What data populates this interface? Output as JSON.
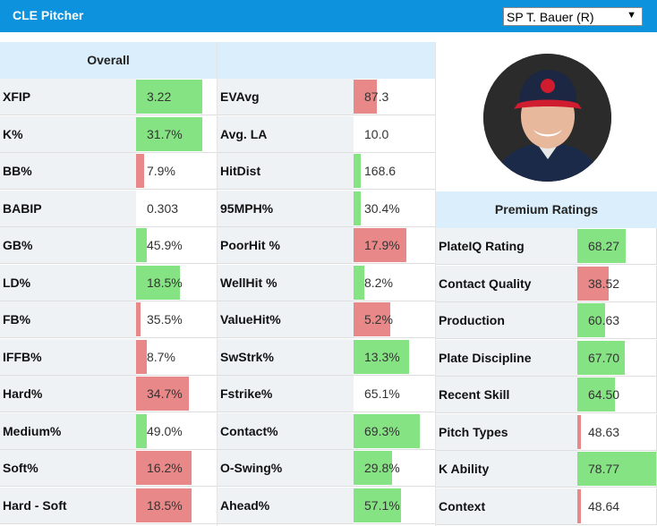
{
  "header": {
    "title": "CLE Pitcher",
    "pitcher_select": {
      "value": "SP T. Bauer (R)"
    }
  },
  "colors": {
    "header_bg": "#0d92dd",
    "good": "#86e384",
    "bad": "#e98888",
    "section_bg": "#daeefb",
    "label_bg": "#eef2f5"
  },
  "columns": [
    {
      "header": "Overall",
      "rows": [
        {
          "label": "XFIP",
          "value": "3.22",
          "fill": 0.98,
          "color": "good"
        },
        {
          "label": "K%",
          "value": "31.7%",
          "fill": 0.98,
          "color": "good"
        },
        {
          "label": "BB%",
          "value": "7.9%",
          "fill": 0.12,
          "color": "bad"
        },
        {
          "label": "BABIP",
          "value": "0.303",
          "fill": 0,
          "color": "good"
        },
        {
          "label": "GB%",
          "value": "45.9%",
          "fill": 0.16,
          "color": "good"
        },
        {
          "label": "LD%",
          "value": "18.5%",
          "fill": 0.64,
          "color": "good"
        },
        {
          "label": "FB%",
          "value": "35.5%",
          "fill": 0.06,
          "color": "bad"
        },
        {
          "label": "IFFB%",
          "value": "8.7%",
          "fill": 0.16,
          "color": "bad"
        },
        {
          "label": "Hard%",
          "value": "34.7%",
          "fill": 0.77,
          "color": "bad"
        },
        {
          "label": "Medium%",
          "value": "49.0%",
          "fill": 0.16,
          "color": "good"
        },
        {
          "label": "Soft%",
          "value": "16.2%",
          "fill": 0.82,
          "color": "bad"
        },
        {
          "label": "Hard - Soft",
          "value": "18.5%",
          "fill": 0.82,
          "color": "bad"
        }
      ]
    },
    {
      "header": "",
      "rows": [
        {
          "label": "EVAvg",
          "value": "87.3",
          "fill": 0.34,
          "color": "bad"
        },
        {
          "label": "Avg. LA",
          "value": "10.0",
          "fill": 0,
          "color": "good"
        },
        {
          "label": "HitDist",
          "value": "168.6",
          "fill": 0.11,
          "color": "good"
        },
        {
          "label": "95MPH%",
          "value": "30.4%",
          "fill": 0.11,
          "color": "good"
        },
        {
          "label": "PoorHit %",
          "value": "17.9%",
          "fill": 0.77,
          "color": "bad"
        },
        {
          "label": "WellHit %",
          "value": "8.2%",
          "fill": 0.16,
          "color": "good"
        },
        {
          "label": "ValueHit%",
          "value": "5.2%",
          "fill": 0.54,
          "color": "bad"
        },
        {
          "label": "SwStrk%",
          "value": "13.3%",
          "fill": 0.82,
          "color": "good"
        },
        {
          "label": "Fstrike%",
          "value": "65.1%",
          "fill": 0,
          "color": "good"
        },
        {
          "label": "Contact%",
          "value": "69.3%",
          "fill": 0.98,
          "color": "good"
        },
        {
          "label": "O-Swing%",
          "value": "29.8%",
          "fill": 0.57,
          "color": "good"
        },
        {
          "label": "Ahead%",
          "value": "57.1%",
          "fill": 0.7,
          "color": "good"
        }
      ]
    }
  ],
  "premium": {
    "header": "Premium Ratings",
    "rows": [
      {
        "label": "PlateIQ Rating",
        "value": "68.27",
        "fill": 0.61,
        "color": "good"
      },
      {
        "label": "Contact Quality",
        "value": "38.52",
        "fill": 0.39,
        "color": "bad"
      },
      {
        "label": "Production",
        "value": "60.63",
        "fill": 0.35,
        "color": "good"
      },
      {
        "label": "Plate Discipline",
        "value": "67.70",
        "fill": 0.6,
        "color": "good"
      },
      {
        "label": "Recent Skill",
        "value": "64.50",
        "fill": 0.47,
        "color": "good"
      },
      {
        "label": "Pitch Types",
        "value": "48.63",
        "fill": 0.04,
        "color": "bad"
      },
      {
        "label": "K Ability",
        "value": "78.77",
        "fill": 0.99,
        "color": "good"
      },
      {
        "label": "Context",
        "value": "48.64",
        "fill": 0.04,
        "color": "bad"
      }
    ]
  }
}
